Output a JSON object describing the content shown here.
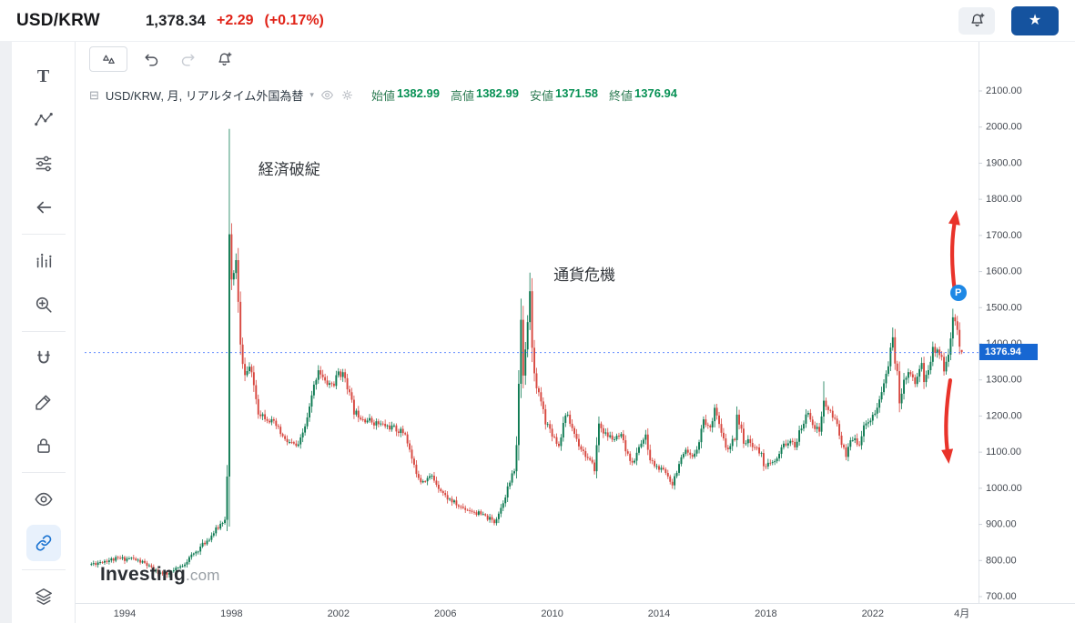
{
  "header": {
    "symbol": "USD/KRW",
    "price": "1,378.34",
    "change": "+2.29",
    "change_pct": "(+0.17%)",
    "change_color": "#e02318",
    "watchlist_button_color": "#15539f"
  },
  "toolbar": {
    "buttons": [
      "compare-scales",
      "undo",
      "redo",
      "add-alert"
    ]
  },
  "sidebar": {
    "tools": [
      {
        "name": "tool-text",
        "icon": "text-tool-icon"
      },
      {
        "name": "tool-patterns",
        "icon": "patterns-icon"
      },
      {
        "name": "tool-indicators",
        "icon": "sliders-icon"
      },
      {
        "name": "tool-hide-panel",
        "icon": "arrow-left-icon"
      },
      {
        "divider": true
      },
      {
        "name": "tool-bars-pattern",
        "icon": "bars-forecast-icon"
      },
      {
        "name": "tool-zoom-in",
        "icon": "zoom-in-icon"
      },
      {
        "divider": true
      },
      {
        "name": "tool-magnet",
        "icon": "magnet-icon"
      },
      {
        "name": "tool-drawing",
        "icon": "pencil-icon"
      },
      {
        "name": "tool-lock-drawings",
        "icon": "lock-icon"
      },
      {
        "divider": true
      },
      {
        "name": "tool-hide-drawings",
        "icon": "eye-icon"
      },
      {
        "name": "tool-link",
        "icon": "link-icon",
        "active": true
      },
      {
        "divider": true
      },
      {
        "name": "tool-object-tree",
        "icon": "layers-icon"
      }
    ]
  },
  "legend": {
    "title": "USD/KRW, 月, リアルタイム外国為替",
    "ohlc": [
      {
        "label": "始値",
        "value": "1382.99"
      },
      {
        "label": "高値",
        "value": "1382.99"
      },
      {
        "label": "安値",
        "value": "1371.58"
      },
      {
        "label": "終値",
        "value": "1376.94"
      }
    ],
    "value_color": "#089155"
  },
  "watermark": {
    "brand": "Investing",
    "suffix": ".com"
  },
  "chart_data": {
    "type": "candlestick",
    "symbol": "USD/KRW",
    "timeframe": "月",
    "up_color": "#0d7a52",
    "down_color": "#d7473f",
    "x_axis": {
      "start": 1992.75,
      "ticks": [
        {
          "label": "1994",
          "t": 1994
        },
        {
          "label": "1998",
          "t": 1998
        },
        {
          "label": "2002",
          "t": 2002
        },
        {
          "label": "2006",
          "t": 2006
        },
        {
          "label": "2010",
          "t": 2010
        },
        {
          "label": "2014",
          "t": 2014
        },
        {
          "label": "2018",
          "t": 2018
        },
        {
          "label": "2022",
          "t": 2022
        },
        {
          "label": "4月",
          "t": 2025.3333
        }
      ]
    },
    "y_axis": {
      "min": 700,
      "max": 2100,
      "step": 100,
      "labels": [
        "2100.00",
        "2000.00",
        "1900.00",
        "1800.00",
        "1700.00",
        "1600.00",
        "1500.00",
        "1400.00",
        "1300.00",
        "1200.00",
        "1100.00",
        "1000.00",
        "900.00",
        "800.00",
        "700.00"
      ]
    },
    "last_price": 1376.94,
    "last_price_label": "1376.94",
    "price_line": {
      "value": 1376.94,
      "color": "#2962ff",
      "style": "dotted"
    },
    "current_candle": {
      "t": 2025.3333,
      "open": 1382.99,
      "high": 1382.99,
      "low": 1371.58,
      "close": 1376.94
    },
    "anchors": [
      [
        1992.75,
        790
      ],
      [
        1993.25,
        800
      ],
      [
        1993.75,
        804
      ],
      [
        1994.25,
        806
      ],
      [
        1994.75,
        792
      ],
      [
        1995.0833,
        772
      ],
      [
        1995.5833,
        760
      ],
      [
        1996.0833,
        782
      ],
      [
        1996.5833,
        818
      ],
      [
        1997.0833,
        856
      ],
      [
        1997.5,
        892
      ],
      [
        1997.75,
        918
      ],
      [
        1997.8333,
        1030
      ],
      [
        1997.9167,
        1695
      ],
      [
        1998.0,
        1572
      ],
      [
        1998.1667,
        1628
      ],
      [
        1998.3333,
        1392
      ],
      [
        1998.5,
        1312
      ],
      [
        1998.6667,
        1336
      ],
      [
        1998.8333,
        1286
      ],
      [
        1999.0,
        1212
      ],
      [
        1999.3333,
        1195
      ],
      [
        1999.6667,
        1172
      ],
      [
        2000.0,
        1132
      ],
      [
        2000.5,
        1114
      ],
      [
        2000.8333,
        1192
      ],
      [
        2001.0833,
        1282
      ],
      [
        2001.25,
        1332
      ],
      [
        2001.5,
        1292
      ],
      [
        2001.8333,
        1288
      ],
      [
        2002.0,
        1322
      ],
      [
        2002.25,
        1308
      ],
      [
        2002.5833,
        1212
      ],
      [
        2003.0,
        1192
      ],
      [
        2003.5,
        1178
      ],
      [
        2004.0,
        1168
      ],
      [
        2004.5,
        1152
      ],
      [
        2004.8333,
        1058
      ],
      [
        2005.0833,
        1022
      ],
      [
        2005.5,
        1032
      ],
      [
        2006.0,
        978
      ],
      [
        2006.5,
        950
      ],
      [
        2007.0,
        938
      ],
      [
        2007.5,
        921
      ],
      [
        2007.8333,
        907
      ],
      [
        2008.0833,
        946
      ],
      [
        2008.3333,
        1000
      ],
      [
        2008.5833,
        1050
      ],
      [
        2008.6667,
        1115
      ],
      [
        2008.75,
        1292
      ],
      [
        2008.8333,
        1468
      ],
      [
        2008.9167,
        1322
      ],
      [
        2009.0,
        1382
      ],
      [
        2009.0833,
        1452
      ],
      [
        2009.1667,
        1548
      ],
      [
        2009.25,
        1382
      ],
      [
        2009.4167,
        1272
      ],
      [
        2009.5833,
        1242
      ],
      [
        2009.75,
        1186
      ],
      [
        2010.0,
        1152
      ],
      [
        2010.25,
        1118
      ],
      [
        2010.5,
        1208
      ],
      [
        2010.6667,
        1182
      ],
      [
        2011.0,
        1122
      ],
      [
        2011.3333,
        1082
      ],
      [
        2011.5833,
        1054
      ],
      [
        2011.75,
        1178
      ],
      [
        2012.0,
        1148
      ],
      [
        2012.3333,
        1136
      ],
      [
        2012.5833,
        1142
      ],
      [
        2012.8333,
        1088
      ],
      [
        2013.0833,
        1072
      ],
      [
        2013.25,
        1118
      ],
      [
        2013.5,
        1142
      ],
      [
        2013.6667,
        1078
      ],
      [
        2013.9167,
        1058
      ],
      [
        2014.25,
        1042
      ],
      [
        2014.5,
        1014
      ],
      [
        2014.75,
        1068
      ],
      [
        2015.0,
        1098
      ],
      [
        2015.25,
        1082
      ],
      [
        2015.5,
        1132
      ],
      [
        2015.6667,
        1192
      ],
      [
        2015.9167,
        1162
      ],
      [
        2016.0833,
        1228
      ],
      [
        2016.3333,
        1148
      ],
      [
        2016.5833,
        1102
      ],
      [
        2016.8333,
        1142
      ],
      [
        2016.9167,
        1206
      ],
      [
        2017.1667,
        1132
      ],
      [
        2017.5,
        1122
      ],
      [
        2017.8333,
        1092
      ],
      [
        2017.9167,
        1068
      ],
      [
        2018.1667,
        1064
      ],
      [
        2018.4167,
        1078
      ],
      [
        2018.6667,
        1122
      ],
      [
        2018.8333,
        1128
      ],
      [
        2019.0833,
        1118
      ],
      [
        2019.3333,
        1168
      ],
      [
        2019.5833,
        1212
      ],
      [
        2019.8333,
        1168
      ],
      [
        2020.0,
        1158
      ],
      [
        2020.1667,
        1240
      ],
      [
        2020.4167,
        1206
      ],
      [
        2020.6667,
        1178
      ],
      [
        2020.8333,
        1128
      ],
      [
        2021.0,
        1084
      ],
      [
        2021.1667,
        1132
      ],
      [
        2021.5,
        1128
      ],
      [
        2021.75,
        1186
      ],
      [
        2021.9167,
        1190
      ],
      [
        2022.1667,
        1218
      ],
      [
        2022.4167,
        1292
      ],
      [
        2022.5833,
        1342
      ],
      [
        2022.75,
        1420
      ],
      [
        2022.8333,
        1355
      ],
      [
        2022.9167,
        1318
      ],
      [
        2023.0,
        1228
      ],
      [
        2023.1667,
        1308
      ],
      [
        2023.4167,
        1322
      ],
      [
        2023.5833,
        1292
      ],
      [
        2023.8333,
        1352
      ],
      [
        2023.9167,
        1292
      ],
      [
        2024.0833,
        1332
      ],
      [
        2024.25,
        1382
      ],
      [
        2024.5,
        1378
      ],
      [
        2024.6667,
        1334
      ],
      [
        2024.9167,
        1404
      ],
      [
        2025.0,
        1472
      ],
      [
        2025.0833,
        1462
      ],
      [
        2025.1667,
        1430
      ],
      [
        2025.25,
        1383
      ]
    ],
    "spike_highs": [
      [
        1997.9167,
        1995
      ],
      [
        2008.8333,
        1525
      ],
      [
        2009.1667,
        1597
      ],
      [
        2020.1667,
        1296
      ],
      [
        2022.75,
        1445
      ],
      [
        2025.0,
        1487
      ]
    ],
    "spike_lows": [
      [
        1995.5833,
        752
      ],
      [
        2007.8333,
        899
      ],
      [
        2014.5,
        1008
      ],
      [
        2023.0,
        1216
      ]
    ],
    "annotations": [
      {
        "text": "経済破綻",
        "t": 1999.0,
        "value": 1919
      },
      {
        "text": "通貨危機",
        "t": 2010.05,
        "value": 1627
      }
    ],
    "arrows": [
      {
        "direction": "up",
        "color": "#e9332a",
        "from": {
          "t": 2025.07,
          "value": 1546
        },
        "to": {
          "t": 2025.11,
          "value": 1758
        }
      },
      {
        "direction": "down",
        "color": "#e9332a",
        "from": {
          "t": 2024.9,
          "value": 1299
        },
        "to": {
          "t": 2024.83,
          "value": 1080
        }
      }
    ],
    "p_marker": {
      "label": "P",
      "t": 2025.2,
      "value": 1541,
      "color": "#1e88e5"
    },
    "seed": 11
  }
}
